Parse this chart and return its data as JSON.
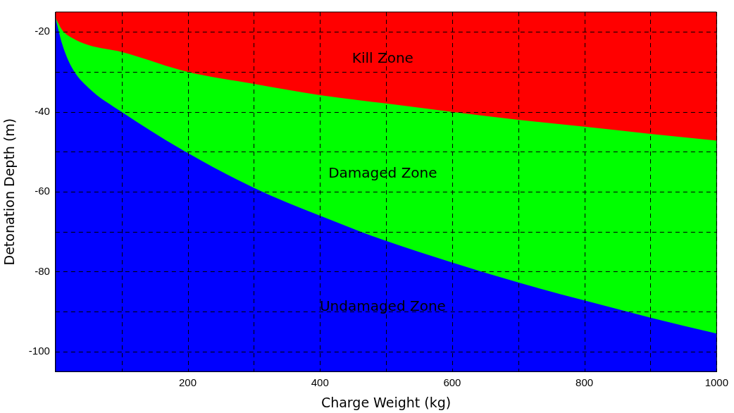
{
  "chart_data": {
    "type": "area",
    "xlabel": "Charge Weight (kg)",
    "ylabel": "Detonation Depth (m)",
    "x": [
      0,
      10,
      25,
      50,
      100,
      200,
      300,
      400,
      500,
      600,
      700,
      800,
      900,
      1000
    ],
    "series": [
      {
        "color": "#ff0000",
        "values": [
          -16.5,
          -19.5,
          -21.5,
          -23.3,
          -25,
          -30,
          -33,
          -35.8,
          -37.9,
          -40,
          -42,
          -43.7,
          -45.5,
          -47.2
        ]
      },
      {
        "color": "#00ff00",
        "values": [
          -16.5,
          -23,
          -29,
          -34,
          -40,
          -50.3,
          -59,
          -66,
          -72.3,
          -77.7,
          -82.7,
          -87.2,
          -91.5,
          -95.5
        ]
      }
    ],
    "bands": [
      {
        "axis": "y",
        "from": -105,
        "to": -15,
        "color": "#0000ff",
        "label": "Undamaged Zone"
      }
    ],
    "xlim": [
      0,
      1000
    ],
    "xticks": [
      {
        "value": 100,
        "label": null
      },
      200,
      {
        "value": 300,
        "label": null
      },
      400,
      {
        "value": 500,
        "label": null
      },
      600,
      {
        "value": 700,
        "label": null
      },
      800,
      {
        "value": 900,
        "label": null
      },
      1000
    ],
    "ylim": [
      -105,
      -15
    ],
    "yticks": [
      -20,
      {
        "value": -30,
        "label": null
      },
      -40,
      {
        "value": -50,
        "label": null
      },
      -60,
      {
        "value": -70,
        "label": null
      },
      -80,
      {
        "value": -90,
        "label": null
      },
      -100
    ],
    "grid": true,
    "annotations": [
      "Kill Zone",
      "Damaged Zone"
    ]
  }
}
